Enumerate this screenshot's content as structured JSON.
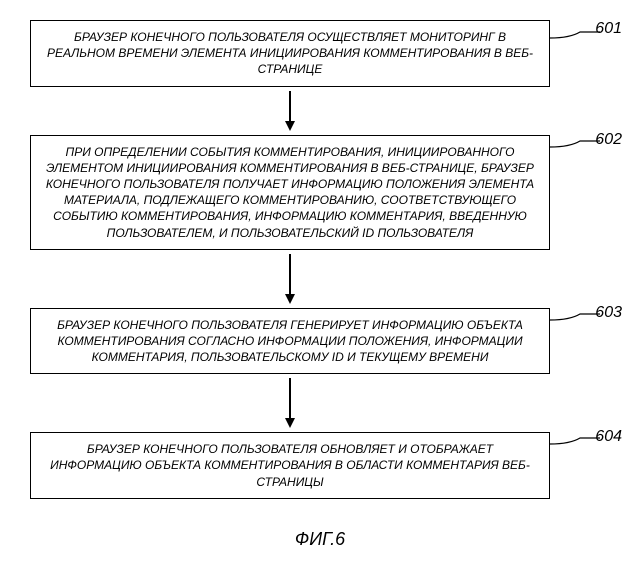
{
  "flowchart": {
    "steps": [
      {
        "id": "601",
        "text": "БРАУЗЕР КОНЕЧНОГО ПОЛЬЗОВАТЕЛЯ ОСУЩЕСТВЛЯЕТ МОНИТОРИНГ В РЕАЛЬНОМ ВРЕМЕНИ ЭЛЕМЕНТА ИНИЦИИРОВАНИЯ КОММЕНТИРОВАНИЯ В ВЕБ-СТРАНИЦЕ",
        "arrow_height": 30
      },
      {
        "id": "602",
        "text": "ПРИ ОПРЕДЕЛЕНИИ СОБЫТИЯ КОММЕНТИРОВАНИЯ, ИНИЦИИРОВАННОГО ЭЛЕМЕНТОМ ИНИЦИИРОВАНИЯ КОММЕНТИРОВАНИЯ В ВЕБ-СТРАНИЦЕ, БРАУЗЕР КОНЕЧНОГО ПОЛЬЗОВАТЕЛЯ ПОЛУЧАЕТ ИНФОРМАЦИЮ ПОЛОЖЕНИЯ ЭЛЕМЕНТА МАТЕРИАЛА, ПОДЛЕЖАЩЕГО КОММЕНТИРОВАНИЮ, СООТВЕТСТВУЮЩЕГО СОБЫТИЮ КОММЕНТИРОВАНИЯ, ИНФОРМАЦИЮ КОММЕНТАРИЯ, ВВЕДЕННУЮ ПОЛЬЗОВАТЕЛЕМ, И ПОЛЬЗОВАТЕЛЬСКИЙ ID ПОЛЬЗОВАТЕЛЯ",
        "arrow_height": 40
      },
      {
        "id": "603",
        "text": "БРАУЗЕР КОНЕЧНОГО ПОЛЬЗОВАТЕЛЯ ГЕНЕРИРУЕТ ИНФОРМАЦИЮ ОБЪЕКТА КОММЕНТИРОВАНИЯ СОГЛАСНО ИНФОРМАЦИИ ПОЛОЖЕНИЯ, ИНФОРМАЦИИ КОММЕНТАРИЯ, ПОЛЬЗОВАТЕЛЬСКОМУ ID И ТЕКУЩЕМУ ВРЕМЕНИ",
        "arrow_height": 40
      },
      {
        "id": "604",
        "text": "БРАУЗЕР КОНЕЧНОГО ПОЛЬЗОВАТЕЛЯ ОБНОВЛЯЕТ И ОТОБРАЖАЕТ ИНФОРМАЦИЮ ОБЪЕКТА КОММЕНТИРОВАНИЯ В ОБЛАСТИ КОММЕНТАРИЯ ВЕБ-СТРАНИЦЫ",
        "arrow_height": 0
      }
    ],
    "caption": "ФИГ.6",
    "box_border_color": "#000000",
    "box_background": "#ffffff",
    "text_color": "#000000",
    "font_size_box": 12,
    "font_size_label": 16,
    "font_size_caption": 18
  }
}
